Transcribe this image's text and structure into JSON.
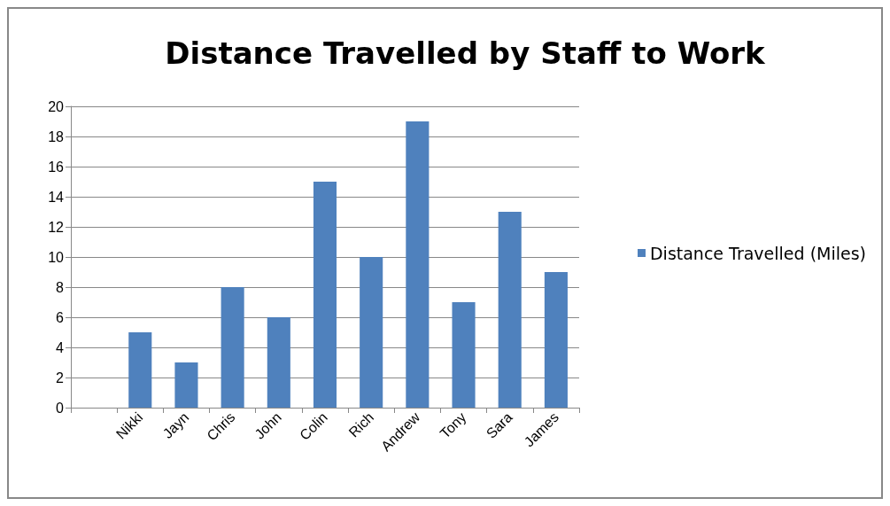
{
  "chart_data": {
    "type": "bar",
    "title": "Distance Travelled by Staff to Work",
    "categories": [
      null,
      "Nikki",
      "Jayn",
      "Chris",
      "John",
      "Colin",
      "Rich",
      "Andrew",
      "Tony",
      "Sara",
      "James"
    ],
    "series": [
      {
        "name": "Distance Travelled (Miles)",
        "color": "#4f81bd",
        "values": [
          null,
          5,
          3,
          8,
          6,
          15,
          10,
          19,
          7,
          13,
          9
        ]
      }
    ],
    "ylim": [
      0,
      20
    ],
    "yticks": [
      0,
      2,
      4,
      6,
      8,
      10,
      12,
      14,
      16,
      18,
      20
    ],
    "grid": "y",
    "legend": "right"
  }
}
